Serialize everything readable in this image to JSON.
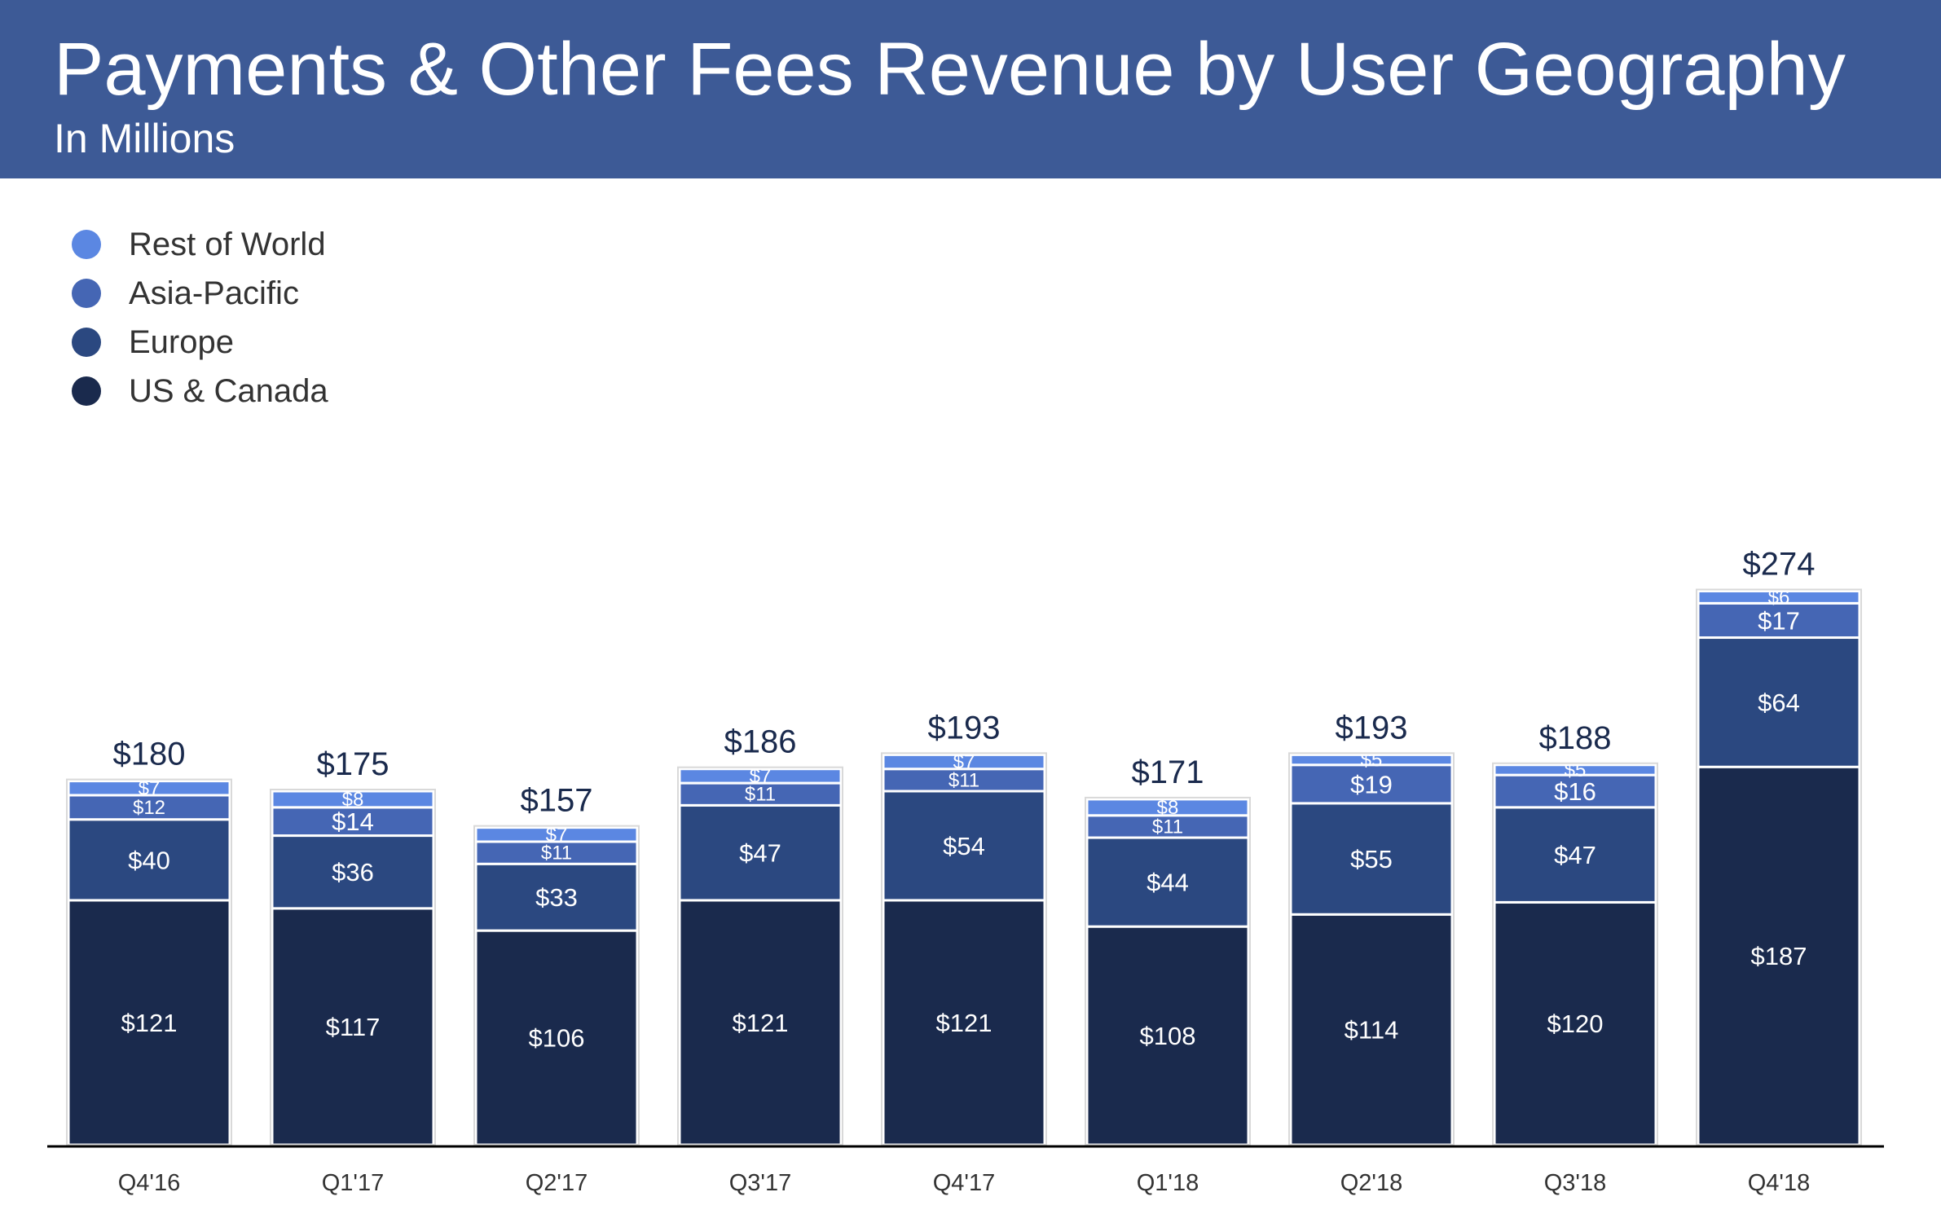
{
  "header": {
    "title": "Payments & Other Fees Revenue by User Geography",
    "subtitle": "In Millions"
  },
  "chart_data": {
    "type": "bar",
    "stacked": true,
    "title": "Payments & Other Fees Revenue by User Geography",
    "subtitle": "In Millions",
    "categories": [
      "Q4'16",
      "Q1'17",
      "Q2'17",
      "Q3'17",
      "Q4'17",
      "Q1'18",
      "Q2'18",
      "Q3'18",
      "Q4'18"
    ],
    "totals": [
      180,
      175,
      157,
      186,
      193,
      171,
      193,
      188,
      274
    ],
    "total_labels": [
      "$180",
      "$175",
      "$157",
      "$186",
      "$193",
      "$171",
      "$193",
      "$188",
      "$274"
    ],
    "series": [
      {
        "name": "US & Canada",
        "color": "#1a2a4d",
        "values": [
          121,
          117,
          106,
          121,
          121,
          108,
          114,
          120,
          187
        ],
        "labels": [
          "$121",
          "$117",
          "$106",
          "$121",
          "$121",
          "$108",
          "$114",
          "$120",
          "$187"
        ]
      },
      {
        "name": "Europe",
        "color": "#2b4880",
        "values": [
          40,
          36,
          33,
          47,
          54,
          44,
          55,
          47,
          64
        ],
        "labels": [
          "$40",
          "$36",
          "$33",
          "$47",
          "$54",
          "$44",
          "$55",
          "$47",
          "$64"
        ]
      },
      {
        "name": "Asia-Pacific",
        "color": "#4566b4",
        "values": [
          12,
          14,
          11,
          11,
          11,
          11,
          19,
          16,
          17
        ],
        "labels": [
          "$12",
          "$14",
          "$11",
          "$11",
          "$11",
          "$11",
          "$19",
          "$16",
          "$17"
        ]
      },
      {
        "name": "Rest of World",
        "color": "#5b87e2",
        "values": [
          7,
          8,
          7,
          7,
          7,
          8,
          5,
          5,
          6
        ],
        "labels": [
          "$7",
          "$8",
          "$7",
          "$7",
          "$7",
          "$8",
          "$5",
          "$5",
          "$6"
        ]
      }
    ],
    "legend": [
      "Rest of World",
      "Asia-Pacific",
      "Europe",
      "US & Canada"
    ],
    "legend_position": "top-left",
    "xlabel": "",
    "ylabel": "",
    "ylim": [
      0,
      274
    ],
    "grid": false
  }
}
